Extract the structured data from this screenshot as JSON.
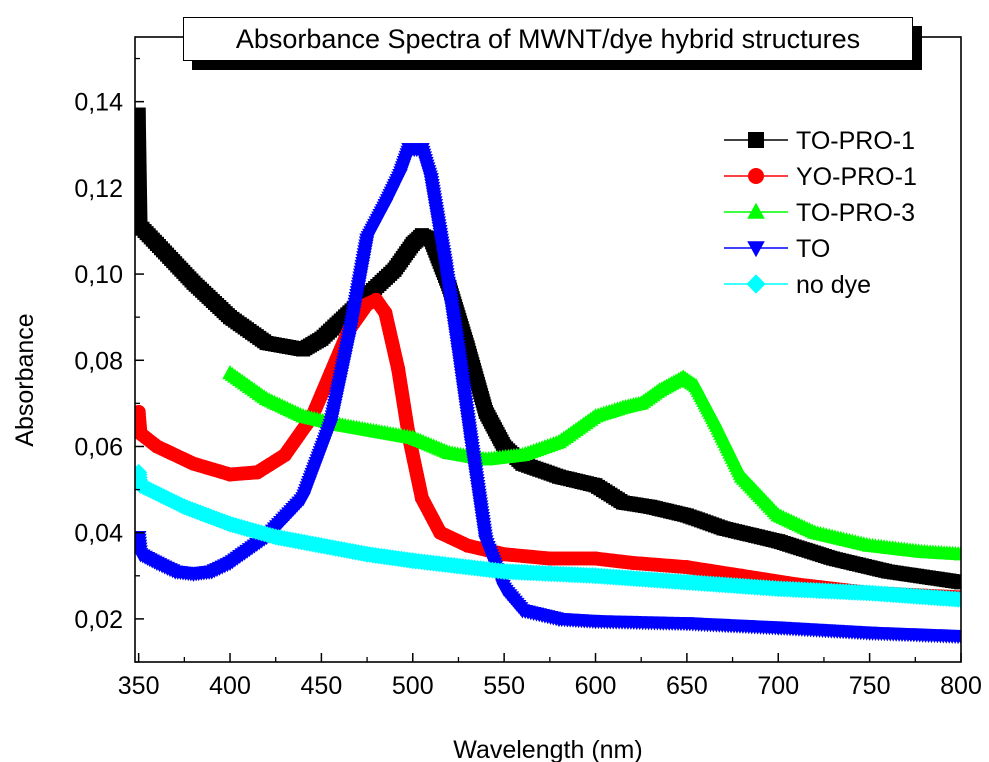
{
  "chart_data": {
    "type": "scatter",
    "title": "Absorbance Spectra of MWNT/dye hybrid structures",
    "xlabel": "Wavelength (nm)",
    "ylabel": "Absorbance",
    "xlim": [
      348,
      800
    ],
    "ylim": [
      0.01,
      0.155
    ],
    "x_ticks": [
      350,
      400,
      450,
      500,
      550,
      600,
      650,
      700,
      750,
      800
    ],
    "x_tick_labels": [
      "350",
      "400",
      "450",
      "500",
      "550",
      "600",
      "650",
      "700",
      "750",
      "800"
    ],
    "y_ticks": [
      0.02,
      0.04,
      0.06,
      0.08,
      0.1,
      0.12,
      0.14
    ],
    "y_tick_labels": [
      "0,02",
      "0,04",
      "0,06",
      "0,08",
      "0,10",
      "0,12",
      "0,14"
    ],
    "grid": false,
    "legend_position": "top-right",
    "series": [
      {
        "name": "TO-PRO-1",
        "color": "#000000",
        "marker": "square",
        "points": [
          [
            350,
            0.137
          ],
          [
            351,
            0.111
          ],
          [
            360,
            0.107
          ],
          [
            380,
            0.098
          ],
          [
            400,
            0.09
          ],
          [
            420,
            0.084
          ],
          [
            440,
            0.0825
          ],
          [
            450,
            0.085
          ],
          [
            470,
            0.093
          ],
          [
            490,
            0.101
          ],
          [
            500,
            0.107
          ],
          [
            505,
            0.109
          ],
          [
            510,
            0.108
          ],
          [
            520,
            0.097
          ],
          [
            530,
            0.083
          ],
          [
            540,
            0.068
          ],
          [
            550,
            0.06
          ],
          [
            560,
            0.056
          ],
          [
            580,
            0.053
          ],
          [
            600,
            0.051
          ],
          [
            615,
            0.047
          ],
          [
            630,
            0.046
          ],
          [
            650,
            0.044
          ],
          [
            670,
            0.041
          ],
          [
            700,
            0.038
          ],
          [
            730,
            0.034
          ],
          [
            760,
            0.031
          ],
          [
            800,
            0.0285
          ]
        ]
      },
      {
        "name": "YO-PRO-1",
        "color": "#ff0000",
        "marker": "circle",
        "points": [
          [
            350,
            0.068
          ],
          [
            351,
            0.063
          ],
          [
            360,
            0.06
          ],
          [
            380,
            0.056
          ],
          [
            400,
            0.0535
          ],
          [
            415,
            0.054
          ],
          [
            430,
            0.058
          ],
          [
            445,
            0.067
          ],
          [
            455,
            0.077
          ],
          [
            465,
            0.087
          ],
          [
            475,
            0.093
          ],
          [
            480,
            0.094
          ],
          [
            485,
            0.091
          ],
          [
            492,
            0.078
          ],
          [
            498,
            0.062
          ],
          [
            505,
            0.048
          ],
          [
            515,
            0.04
          ],
          [
            530,
            0.037
          ],
          [
            550,
            0.035
          ],
          [
            575,
            0.034
          ],
          [
            600,
            0.034
          ],
          [
            620,
            0.033
          ],
          [
            650,
            0.032
          ],
          [
            680,
            0.03
          ],
          [
            710,
            0.028
          ],
          [
            750,
            0.026
          ],
          [
            800,
            0.025
          ]
        ]
      },
      {
        "name": "TO-PRO-3",
        "color": "#00ff00",
        "marker": "triangle-up",
        "points": [
          [
            400,
            0.077
          ],
          [
            420,
            0.071
          ],
          [
            440,
            0.067
          ],
          [
            460,
            0.065
          ],
          [
            480,
            0.0635
          ],
          [
            500,
            0.062
          ],
          [
            520,
            0.0585
          ],
          [
            540,
            0.057
          ],
          [
            560,
            0.058
          ],
          [
            580,
            0.061
          ],
          [
            600,
            0.067
          ],
          [
            615,
            0.069
          ],
          [
            625,
            0.07
          ],
          [
            635,
            0.073
          ],
          [
            648,
            0.076
          ],
          [
            655,
            0.074
          ],
          [
            665,
            0.066
          ],
          [
            680,
            0.053
          ],
          [
            700,
            0.044
          ],
          [
            720,
            0.04
          ],
          [
            750,
            0.037
          ],
          [
            780,
            0.0355
          ],
          [
            800,
            0.035
          ]
        ]
      },
      {
        "name": "TO",
        "color": "#0000ff",
        "marker": "triangle-down",
        "points": [
          [
            350,
            0.039
          ],
          [
            351,
            0.035
          ],
          [
            360,
            0.033
          ],
          [
            370,
            0.031
          ],
          [
            380,
            0.0305
          ],
          [
            390,
            0.031
          ],
          [
            400,
            0.033
          ],
          [
            420,
            0.039
          ],
          [
            440,
            0.048
          ],
          [
            455,
            0.065
          ],
          [
            465,
            0.085
          ],
          [
            475,
            0.108
          ],
          [
            485,
            0.116
          ],
          [
            493,
            0.123
          ],
          [
            498,
            0.129
          ],
          [
            505,
            0.129
          ],
          [
            510,
            0.122
          ],
          [
            518,
            0.102
          ],
          [
            525,
            0.082
          ],
          [
            532,
            0.061
          ],
          [
            540,
            0.038
          ],
          [
            550,
            0.027
          ],
          [
            560,
            0.022
          ],
          [
            580,
            0.02
          ],
          [
            600,
            0.0195
          ],
          [
            650,
            0.019
          ],
          [
            700,
            0.018
          ],
          [
            750,
            0.0168
          ],
          [
            800,
            0.016
          ]
        ]
      },
      {
        "name": "no dye",
        "color": "#00ffff",
        "marker": "diamond",
        "points": [
          [
            350,
            0.054
          ],
          [
            351,
            0.051
          ],
          [
            375,
            0.046
          ],
          [
            400,
            0.042
          ],
          [
            425,
            0.039
          ],
          [
            450,
            0.037
          ],
          [
            475,
            0.035
          ],
          [
            500,
            0.0335
          ],
          [
            550,
            0.031
          ],
          [
            600,
            0.03
          ],
          [
            650,
            0.0285
          ],
          [
            700,
            0.027
          ],
          [
            750,
            0.026
          ],
          [
            800,
            0.0245
          ]
        ]
      }
    ]
  }
}
